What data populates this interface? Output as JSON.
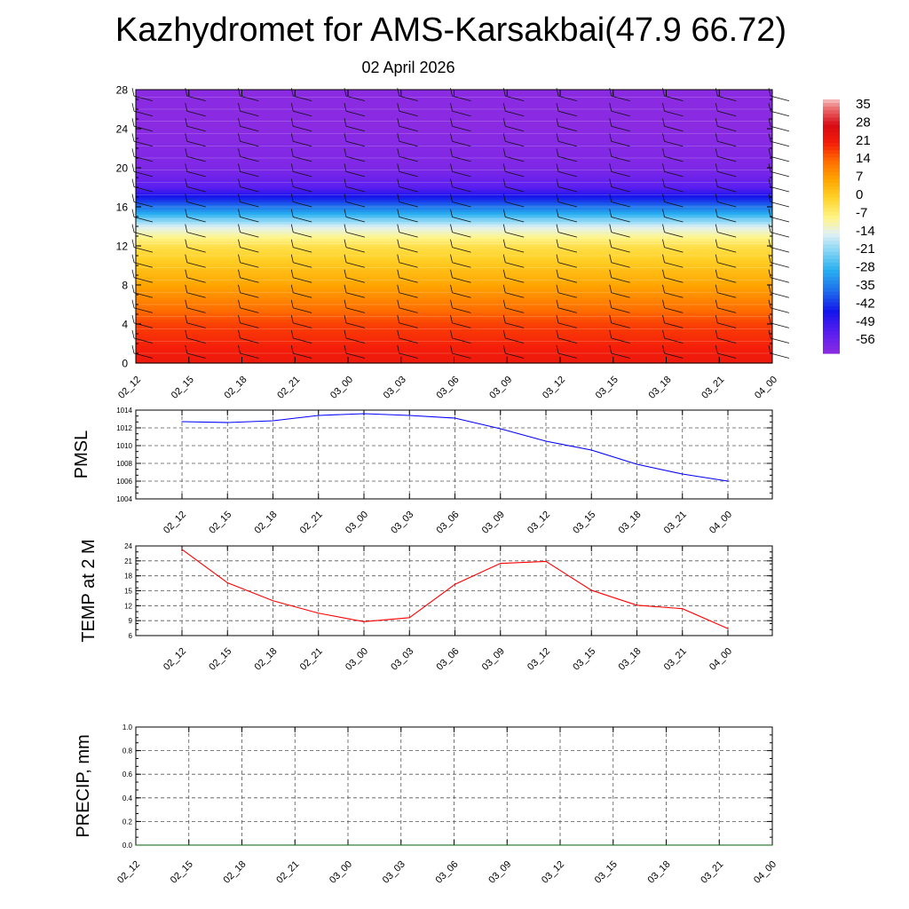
{
  "header": {
    "title": "Kazhydromet for AMS-Karsakbai(47.9 66.72)",
    "subtitle": "02 April 2026"
  },
  "chart_data": [
    {
      "type": "heatmap",
      "title": "",
      "xlabel": "",
      "ylabel": "",
      "categories": [
        "02_12",
        "02_15",
        "02_18",
        "02_21",
        "03_00",
        "03_03",
        "03_06",
        "03_09",
        "03_12",
        "03_15",
        "03_18",
        "03_21",
        "04_00"
      ],
      "ylim": [
        0,
        28
      ],
      "yticks": [
        0,
        4,
        8,
        12,
        16,
        20,
        24,
        28
      ],
      "z_levels": [
        0,
        4,
        8,
        12,
        14,
        16,
        18,
        20,
        24,
        28
      ],
      "z_values_approx": [
        23,
        18,
        7,
        -3,
        -14,
        -35,
        -52,
        -58,
        -60,
        -60
      ],
      "colorbar": {
        "labels": [
          "35",
          "28",
          "21",
          "14",
          "7",
          "0",
          "-7",
          "-14",
          "-21",
          "-28",
          "-35",
          "-42",
          "-49",
          "-56"
        ],
        "range": [
          -60,
          38
        ]
      },
      "wind_barbs": true
    },
    {
      "type": "line",
      "ylabel": "PMSL",
      "categories": [
        "02_12",
        "02_15",
        "02_18",
        "02_21",
        "03_00",
        "03_03",
        "03_06",
        "03_09",
        "03_12",
        "03_15",
        "03_18",
        "03_21",
        "04_00"
      ],
      "ylim": [
        1004,
        1014
      ],
      "yticks": [
        1004,
        1006,
        1008,
        1010,
        1012,
        1014
      ],
      "series": [
        {
          "values": [
            1012.7,
            1012.6,
            1012.8,
            1013.4,
            1013.6,
            1013.4,
            1013.1,
            1011.9,
            1010.5,
            1009.5,
            1007.9,
            1006.8,
            1006.0
          ]
        }
      ],
      "color": "#0000ff",
      "grid": true
    },
    {
      "type": "line",
      "ylabel": "TEMP at 2 M",
      "categories": [
        "02_12",
        "02_15",
        "02_18",
        "02_21",
        "03_00",
        "03_03",
        "03_06",
        "03_09",
        "03_12",
        "03_15",
        "03_18",
        "03_21",
        "04_00"
      ],
      "ylim": [
        6,
        24
      ],
      "yticks": [
        6,
        9,
        12,
        15,
        18,
        21,
        24
      ],
      "series": [
        {
          "values": [
            23.3,
            16.6,
            13.0,
            10.5,
            8.8,
            9.6,
            16.3,
            20.5,
            20.9,
            15.1,
            12.1,
            11.4,
            7.4
          ]
        }
      ],
      "color": "#ff0000",
      "grid": true
    },
    {
      "type": "line",
      "ylabel": "PRECIP, mm",
      "categories": [
        "02_12",
        "02_15",
        "02_18",
        "02_21",
        "03_00",
        "03_03",
        "03_06",
        "03_09",
        "03_12",
        "03_15",
        "03_18",
        "03_21",
        "04_00"
      ],
      "ylim": [
        0.0,
        1.0
      ],
      "yticks": [
        "0.0",
        "0.2",
        "0.4",
        "0.6",
        "0.8",
        "1.0"
      ],
      "series": [
        {
          "values": [
            0,
            0,
            0,
            0,
            0,
            0,
            0,
            0,
            0,
            0,
            0,
            0,
            0
          ]
        }
      ],
      "color": "#006400",
      "grid": true
    }
  ]
}
